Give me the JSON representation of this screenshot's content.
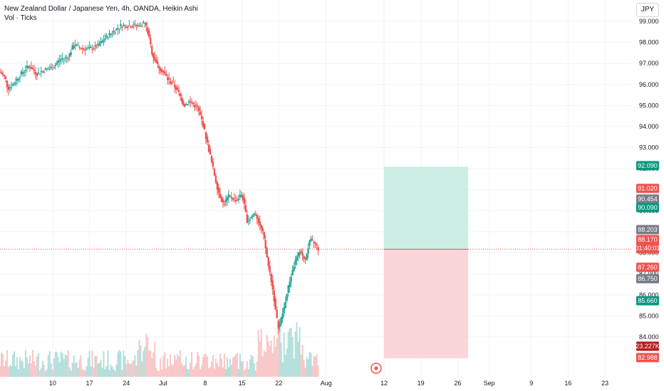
{
  "legend": {
    "title": "New Zealand Dollar / Japanese Yen, 4h, OANDA, Heikin Ashi",
    "volume": "Vol · Ticks"
  },
  "currency_button": "JPY",
  "colors": {
    "up": "#26a69a",
    "down": "#ef5350",
    "vol_up": "#b2dfdb",
    "vol_down": "#f8c6c6",
    "target_zone": "#cdeee4",
    "stop_zone": "#fbd6d8",
    "current_price_line": "#ef5350"
  },
  "chart_data": {
    "type": "candlestick",
    "style": "Heikin Ashi",
    "timeframe": "4h",
    "y_axis_position": "right",
    "ylim": [
      82.4,
      99.3
    ],
    "y_ticks": [
      "84.000",
      "85.000",
      "86.000",
      "87.000",
      "88.000",
      "89.000",
      "90.000",
      "91.000",
      "92.000",
      "93.000",
      "94.000",
      "95.000",
      "96.000",
      "97.000",
      "98.000",
      "99.000"
    ],
    "x_ticks": [
      {
        "label": "10",
        "x": 10
      },
      {
        "label": "17",
        "x": 17
      },
      {
        "label": "24",
        "x": 24
      },
      {
        "label": "Jul",
        "x": 31
      },
      {
        "label": "8",
        "x": 39
      },
      {
        "label": "15",
        "x": 46
      },
      {
        "label": "22",
        "x": 53
      },
      {
        "label": "Aug",
        "x": 62
      },
      {
        "label": "12",
        "x": 73
      },
      {
        "label": "19",
        "x": 80
      },
      {
        "label": "26",
        "x": 87
      },
      {
        "label": "Sep",
        "x": 93
      },
      {
        "label": "9",
        "x": 101
      },
      {
        "label": "16",
        "x": 108
      },
      {
        "label": "23",
        "x": 115
      }
    ],
    "xlim": [
      0,
      120
    ],
    "price_path": [
      [
        0,
        96.6
      ],
      [
        1,
        96.3
      ],
      [
        1.5,
        95.8
      ],
      [
        2.5,
        96.0
      ],
      [
        4,
        96.5
      ],
      [
        5.5,
        96.9
      ],
      [
        7,
        96.5
      ],
      [
        8.5,
        96.7
      ],
      [
        10,
        96.8
      ],
      [
        11.5,
        97.2
      ],
      [
        13,
        97.3
      ],
      [
        14,
        97.9
      ],
      [
        15.5,
        97.7
      ],
      [
        17,
        97.7
      ],
      [
        18.5,
        97.8
      ],
      [
        20,
        98.2
      ],
      [
        21.5,
        98.5
      ],
      [
        23,
        98.8
      ],
      [
        24.5,
        98.8
      ],
      [
        26.5,
        98.8
      ],
      [
        27.5,
        98.95
      ],
      [
        28,
        98.6
      ],
      [
        29,
        97.4
      ],
      [
        30,
        96.9
      ],
      [
        31,
        96.6
      ],
      [
        32,
        96.2
      ],
      [
        33,
        96.0
      ],
      [
        34,
        95.6
      ],
      [
        35,
        95.0
      ],
      [
        36,
        95.2
      ],
      [
        37.5,
        94.9
      ],
      [
        38.5,
        94.2
      ],
      [
        39.5,
        93.1
      ],
      [
        40.5,
        92.0
      ],
      [
        41.5,
        90.9
      ],
      [
        42.5,
        90.3
      ],
      [
        43.5,
        90.7
      ],
      [
        45,
        90.5
      ],
      [
        46,
        90.8
      ],
      [
        47,
        89.5
      ],
      [
        48.5,
        89.9
      ],
      [
        49,
        89.6
      ],
      [
        50,
        88.9
      ],
      [
        50.5,
        88.2
      ],
      [
        51,
        87.4
      ],
      [
        51.5,
        86.8
      ],
      [
        52,
        86.0
      ],
      [
        52.5,
        85.0
      ],
      [
        53,
        84.4
      ],
      [
        54,
        85.4
      ],
      [
        55,
        86.6
      ],
      [
        56,
        87.5
      ],
      [
        57,
        88.1
      ],
      [
        58,
        87.6
      ],
      [
        58.5,
        88.2
      ],
      [
        59,
        88.6
      ],
      [
        60,
        88.4
      ],
      [
        60.5,
        88.17
      ]
    ],
    "volume_pattern_ticks": "shown as background bars",
    "last_price": "88.170",
    "countdown": "01:40:01",
    "position_tool": {
      "entry": 88.17,
      "target": 92.09,
      "stop": 82.988,
      "x_start": 73,
      "x_end": 89
    },
    "price_tags": [
      {
        "label": "92.090",
        "value": 92.09,
        "color": "#089981"
      },
      {
        "label": "91.020",
        "value": 91.02,
        "color": "#ef5350"
      },
      {
        "label": "90.454",
        "value": 90.454,
        "color": "#787b86"
      },
      {
        "label": "90.090",
        "value": 90.09,
        "color": "#089981"
      },
      {
        "label": "88.203",
        "value": 88.203,
        "color": "#787b86"
      },
      {
        "label": "88.170",
        "value": 88.17,
        "color": "#ef5350"
      },
      {
        "label": "87.260",
        "value": 87.26,
        "color": "#ef5350"
      },
      {
        "label": "86.750",
        "value": 86.75,
        "color": "#787b86"
      },
      {
        "label": "85.660",
        "value": 85.66,
        "color": "#089981"
      },
      {
        "label": "23.227K",
        "value": null,
        "color": "#b71c1c"
      },
      {
        "label": "82.988",
        "value": 82.988,
        "color": "#ef5350"
      }
    ]
  }
}
